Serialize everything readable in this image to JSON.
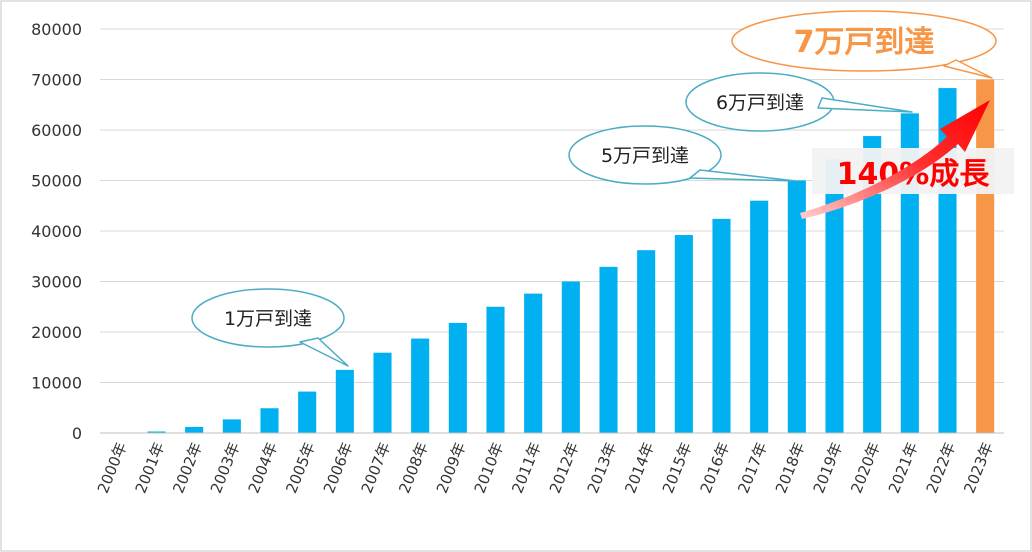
{
  "chart_data": {
    "type": "bar",
    "categories": [
      "2000年",
      "2001年",
      "2002年",
      "2003年",
      "2004年",
      "2005年",
      "2006年",
      "2007年",
      "2008年",
      "2009年",
      "2010年",
      "2011年",
      "2012年",
      "2013年",
      "2014年",
      "2015年",
      "2016年",
      "2017年",
      "2018年",
      "2019年",
      "2020年",
      "2021年",
      "2022年",
      "2023年"
    ],
    "values": [
      0,
      300,
      1200,
      2700,
      4900,
      8200,
      12500,
      15900,
      18700,
      21800,
      25000,
      27600,
      30000,
      32900,
      36200,
      39200,
      42400,
      46000,
      50000,
      54200,
      58800,
      63300,
      68300,
      70000
    ],
    "highlight_index": 23,
    "yticks": [
      0,
      10000,
      20000,
      30000,
      40000,
      50000,
      60000,
      70000,
      80000
    ],
    "ylim": [
      0,
      80000
    ],
    "grid": true,
    "legend": "none",
    "colors": {
      "bar": "#00b0f0",
      "highlight": "#f79646",
      "grid": "#d9d9d9",
      "callout_border": "#4bacc6",
      "big_callout_border": "#f79646",
      "big_callout_text": "#f79646",
      "arrow": "#ff0000",
      "growth_text": "#ff0000"
    },
    "annotations": {
      "callouts": [
        {
          "text": "1万戸到達",
          "index": 6
        },
        {
          "text": "5万戸到達",
          "index": 18
        },
        {
          "text": "6万戸到達",
          "index": 21
        }
      ],
      "big_callout": {
        "text": "7万戸到達",
        "index": 23
      },
      "growth": {
        "text": "140%成長"
      }
    }
  }
}
